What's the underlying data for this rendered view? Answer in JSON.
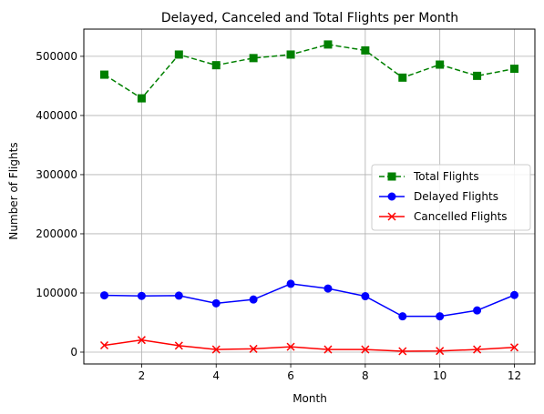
{
  "chart_data": {
    "type": "line",
    "title": "Delayed, Canceled and Total Flights per Month",
    "xlabel": "Month",
    "ylabel": "Number of Flights",
    "x": [
      1,
      2,
      3,
      4,
      5,
      6,
      7,
      8,
      9,
      10,
      11,
      12
    ],
    "xlim": [
      0.45,
      12.55
    ],
    "ylim": [
      -20000,
      546000
    ],
    "xticks": [
      2,
      4,
      6,
      8,
      10,
      12
    ],
    "yticks": [
      0,
      100000,
      200000,
      300000,
      400000,
      500000
    ],
    "grid": true,
    "legend_position": "center-right",
    "series": [
      {
        "name": "Total Flights",
        "color": "#008000",
        "line_style": "dashed",
        "marker": "square",
        "values": [
          469000,
          429000,
          503000,
          485000,
          497000,
          503000,
          520000,
          510000,
          464000,
          486000,
          467000,
          479000
        ]
      },
      {
        "name": "Delayed Flights",
        "color": "#0000ff",
        "line_style": "solid",
        "marker": "circle",
        "values": [
          96000,
          95000,
          95500,
          82500,
          89000,
          115500,
          107500,
          94500,
          60500,
          60500,
          70500,
          96500
        ]
      },
      {
        "name": "Cancelled Flights",
        "color": "#ff0000",
        "line_style": "solid",
        "marker": "x",
        "values": [
          11500,
          20500,
          11000,
          4500,
          5500,
          9000,
          4500,
          4500,
          1500,
          2000,
          4500,
          8000
        ]
      }
    ]
  }
}
